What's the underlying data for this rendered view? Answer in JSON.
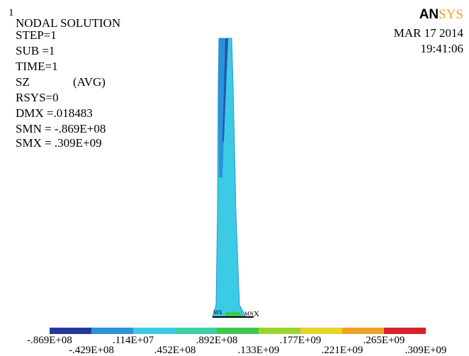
{
  "header": {
    "window_number": "1",
    "title": "NODAL SOLUTION",
    "lines": [
      "STEP=1",
      "SUB =1",
      "TIME=1"
    ],
    "result": "SZ",
    "result_mode": "(AVG)",
    "lines2": [
      "RSYS=0",
      "DMX =.018483",
      "SMN = -.869E+08",
      "SMX = .309E+09"
    ]
  },
  "logo": {
    "part1": "AN",
    "part2": "SYS"
  },
  "date": "MAR  17  2014",
  "time": "19:41:06",
  "markers": {
    "max": "MX",
    "min": "MN",
    "axis": "X"
  },
  "legend": {
    "colors": [
      "#26399b",
      "#2b92d9",
      "#3ccbe4",
      "#3ccfa3",
      "#3dc84c",
      "#9cd32b",
      "#e6d32b",
      "#f1a224",
      "#d8222b"
    ],
    "labels_top": [
      "-.869E+08",
      ".114E+07",
      ".892E+08",
      ".177E+09",
      ".265E+09"
    ],
    "labels_bottom": [
      "-.429E+08",
      ".452E+08",
      ".133E+09",
      ".221E+09",
      ".309E+09"
    ]
  }
}
